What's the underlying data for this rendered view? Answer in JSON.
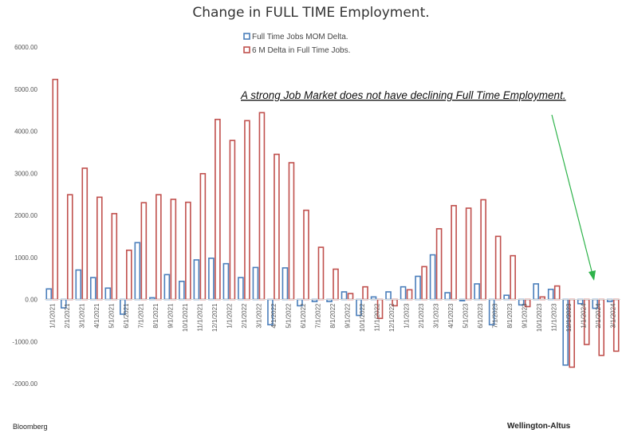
{
  "chart_data": {
    "type": "bar",
    "title": "Change in FULL TIME Employment.",
    "categories": [
      "1/1/2021",
      "2/1/2021",
      "3/1/2021",
      "4/1/2021",
      "5/1/2021",
      "6/1/2021",
      "7/1/2021",
      "8/1/2021",
      "9/1/2021",
      "10/1/2021",
      "11/1/2021",
      "12/1/2021",
      "1/1/2022",
      "2/1/2022",
      "3/1/2022",
      "4/1/2022",
      "5/1/2022",
      "6/1/2022",
      "7/1/2022",
      "8/1/2022",
      "9/1/2022",
      "10/1/2022",
      "11/1/2022",
      "12/1/2022",
      "1/1/2023",
      "2/1/2023",
      "3/1/2023",
      "4/1/2023",
      "5/1/2023",
      "6/1/2023",
      "7/1/2023",
      "8/1/2023",
      "9/1/2023",
      "10/1/2023",
      "11/1/2023",
      "12/1/2023",
      "1/1/2024",
      "2/1/2024",
      "3/1/2024"
    ],
    "series": [
      {
        "name": "Full Time Jobs MOM Delta.",
        "color": "#4a7ebb",
        "values": [
          250,
          -200,
          700,
          520,
          270,
          -350,
          1350,
          40,
          590,
          430,
          940,
          980,
          850,
          520,
          760,
          -600,
          750,
          -150,
          -50,
          -50,
          180,
          -380,
          60,
          180,
          300,
          550,
          1060,
          160,
          -30,
          370,
          -600,
          100,
          -130,
          370,
          240,
          -1560,
          -100,
          -210,
          -50
        ]
      },
      {
        "name": "6 M Delta in Full Time Jobs.",
        "color": "#c0504d",
        "values": [
          5230,
          2490,
          3120,
          2430,
          2040,
          1170,
          2300,
          2490,
          2380,
          2310,
          2990,
          4280,
          3780,
          4250,
          4440,
          3450,
          3250,
          2120,
          1240,
          720,
          140,
          300,
          -450,
          -150,
          230,
          780,
          1680,
          2230,
          2170,
          2370,
          1500,
          1040,
          -170,
          60,
          320,
          -1610,
          -1070,
          -1330,
          -1230
        ]
      }
    ],
    "yticks": [
      "6000.00",
      "5000.00",
      "4000.00",
      "3000.00",
      "2000.00",
      "1000.00",
      "0.00",
      "-1000.00",
      "-2000.00"
    ],
    "ylim": [
      -2000,
      6000
    ],
    "grid": false,
    "legend_position": "top-center",
    "annotation": "A strong Job Market does not have declining Full Time Employment",
    "annotation_suffix": "."
  },
  "footer": {
    "source": "Bloomberg",
    "brand": "Wellington-Altus"
  }
}
